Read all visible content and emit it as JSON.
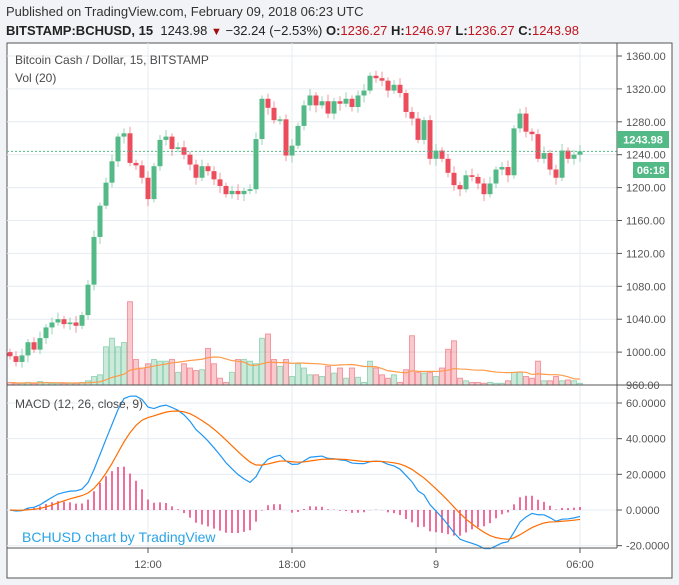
{
  "header": {
    "published": "Published on TradingView.com, February 09, 2018 06:23 UTC",
    "symbol": "BITSTAMP:BCHUSD, 15",
    "last": "1243.98",
    "change": "−32.24 (−2.53%)",
    "direction_icon": "triangle-down-icon",
    "o_label": "O:",
    "o": "1236.27",
    "h_label": "H:",
    "h": "1246.97",
    "l_label": "L:",
    "l": "1236.27",
    "c_label": "C:",
    "c": "1243.98"
  },
  "chart": {
    "title": "Bitcoin Cash / Dollar, 15, BITSTAMP",
    "volume_label": "Vol (20)",
    "macd_label": "MACD (12, 26, close, 9)",
    "watermark": "BCHUSD chart by TradingView",
    "last_price_tag": "1243.98",
    "countdown_tag": "06:18",
    "price_ticks": [
      "1360.00",
      "1320.00",
      "1280.00",
      "1240.00",
      "1200.00",
      "1160.00",
      "1120.00",
      "1080.00",
      "1040.00",
      "1000.00",
      "960.00"
    ],
    "macd_ticks": [
      "60.0000",
      "40.0000",
      "20.0000",
      "0.0000",
      "-20.0000"
    ],
    "time_ticks": [
      "12:00",
      "18:00",
      "9",
      "06:00"
    ],
    "colors": {
      "up": "#53b987",
      "down": "#eb4d5c",
      "macd": "#2196f3",
      "signal": "#ff6d00",
      "histogram": "#e91e63",
      "vol_ma": "#ff9b4a",
      "last_price": "#53b987"
    }
  },
  "chart_data": {
    "type": "candlestick",
    "interval_minutes": 15,
    "price_range": [
      960,
      1360
    ],
    "macd_range": [
      -20,
      60
    ],
    "macd_params": [
      12,
      26,
      9
    ],
    "volume_ma_length": 20,
    "first_open": 1000,
    "close": [
      995,
      988,
      996,
      1012,
      1003,
      1017,
      1030,
      1036,
      1040,
      1034,
      1036,
      1032,
      1045,
      1082,
      1140,
      1178,
      1206,
      1232,
      1262,
      1266,
      1230,
      1227,
      1212,
      1186,
      1226,
      1258,
      1262,
      1247,
      1249,
      1240,
      1228,
      1212,
      1226,
      1220,
      1210,
      1202,
      1192,
      1196,
      1192,
      1196,
      1198,
      1259,
      1308,
      1297,
      1282,
      1283,
      1239,
      1251,
      1275,
      1300,
      1312,
      1300,
      1305,
      1290,
      1305,
      1302,
      1308,
      1298,
      1312,
      1318,
      1336,
      1333,
      1330,
      1318,
      1325,
      1315,
      1292,
      1284,
      1258,
      1282,
      1235,
      1245,
      1235,
      1218,
      1203,
      1198,
      1215,
      1213,
      1205,
      1192,
      1205,
      1222,
      1225,
      1215,
      1272,
      1290,
      1268,
      1265,
      1235,
      1242,
      1222,
      1212,
      1245,
      1235,
      1240,
      1243.98
    ],
    "volume": [
      3,
      2,
      2,
      3,
      2,
      4,
      3,
      2,
      2,
      2,
      2,
      2,
      3,
      5,
      10,
      12,
      45,
      55,
      45,
      50,
      98,
      30,
      20,
      25,
      30,
      28,
      28,
      30,
      15,
      25,
      20,
      17,
      18,
      43,
      25,
      8,
      3,
      15,
      30,
      30,
      28,
      25,
      55,
      60,
      30,
      22,
      30,
      10,
      25,
      20,
      12,
      12,
      10,
      22,
      14,
      20,
      8,
      20,
      9,
      3,
      28,
      20,
      12,
      8,
      12,
      3,
      18,
      58,
      15,
      14,
      15,
      10,
      20,
      42,
      52,
      8,
      5,
      3,
      3,
      2,
      3,
      2,
      2,
      5,
      15,
      15,
      10,
      8,
      28,
      5,
      5,
      10,
      5,
      6,
      5,
      2
    ]
  }
}
